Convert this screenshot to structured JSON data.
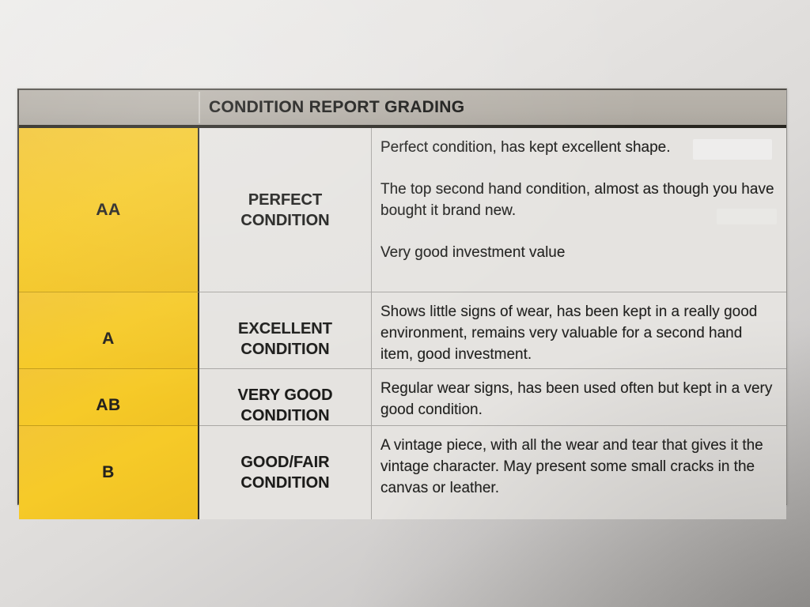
{
  "document": {
    "header": {
      "title": "CONDITION REPORT GRADING"
    },
    "colors": {
      "grade_cell_yellow": "#f5c72b",
      "header_bar_gray": "#b3aea6",
      "cell_background": "#e5e3e0",
      "ink": "#1f1f1f"
    },
    "rows": [
      {
        "grade": "AA",
        "condition_lines": [
          "PERFECT",
          "CONDITION"
        ],
        "description_paragraphs": [
          "Perfect condition, has kept excellent shape.",
          "",
          "The top second hand condition, almost as though you have bought it brand new.",
          "Very good investment value"
        ]
      },
      {
        "grade": "A",
        "condition_lines": [
          "EXCELLENT",
          "CONDITION"
        ],
        "description_paragraphs": [
          "Shows little signs of wear, has been kept in a really good environment, remains very valuable for a second hand item, good investment."
        ]
      },
      {
        "grade": "AB",
        "condition_lines": [
          "VERY GOOD",
          "CONDITION"
        ],
        "description_paragraphs": [
          "Regular wear signs, has been used often but kept in a very good condition."
        ]
      },
      {
        "grade": "B",
        "condition_lines": [
          "GOOD/FAIR",
          "CONDITION"
        ],
        "description_paragraphs": [
          "A vintage piece, with all the wear and tear that gives it the vintage character. May present some small cracks in the canvas or leather."
        ]
      }
    ]
  }
}
